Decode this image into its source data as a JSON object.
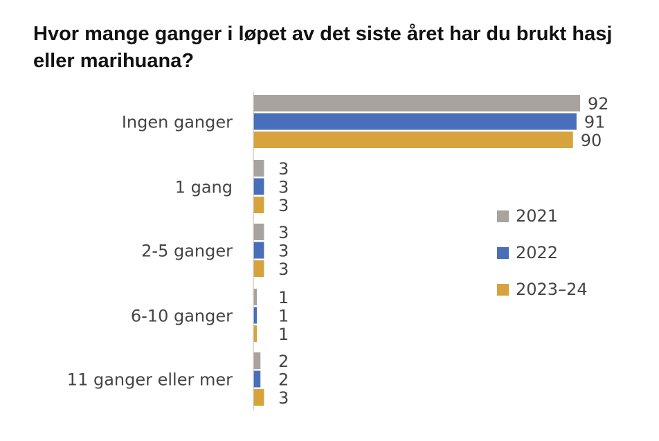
{
  "chart_data": {
    "type": "bar",
    "orientation": "horizontal",
    "title": "Hvor mange ganger i løpet av det siste året har du brukt hasj eller marihuana?",
    "categories": [
      "Ingen ganger",
      "1 gang",
      "2-5 ganger",
      "6-10 ganger",
      "11 ganger eller mer"
    ],
    "series": [
      {
        "name": "2021",
        "color": "#a8a39d",
        "values": [
          92,
          3,
          3,
          1,
          2
        ]
      },
      {
        "name": "2022",
        "color": "#4a6fba",
        "values": [
          91,
          3,
          3,
          1,
          2
        ]
      },
      {
        "name": "2023–24",
        "color": "#d6a33c",
        "values": [
          90,
          3,
          3,
          1,
          3
        ]
      }
    ],
    "xlim": [
      0,
      92
    ],
    "grid": false,
    "legend": "right"
  }
}
